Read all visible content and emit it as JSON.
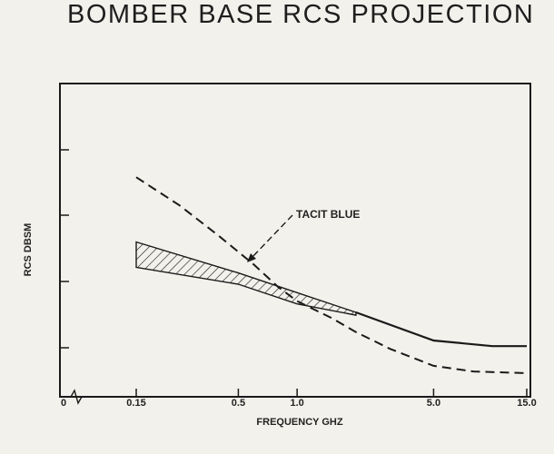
{
  "title": "BOMBER BASE RCS PROJECTION",
  "chart_data": {
    "type": "line",
    "xlabel": "FREQUENCY GHZ",
    "ylabel": "RCS DBSM",
    "x_scale": "log",
    "xlim": [
      0.15,
      15.0
    ],
    "x_ticks": [
      {
        "value": 0.15,
        "label": "0.15"
      },
      {
        "value": 0.5,
        "label": "0.5"
      },
      {
        "value": 1.0,
        "label": "1.0"
      },
      {
        "value": 5.0,
        "label": "5.0"
      },
      {
        "value": 15.0,
        "label": "15.0"
      }
    ],
    "x_origin_label": "0",
    "y_tick_labels_shown": false,
    "grid": false,
    "annotations": [
      {
        "text": "TACIT BLUE",
        "points_to_series": "tacit_blue"
      }
    ],
    "series": [
      {
        "id": "tacit_blue",
        "style": "dashed",
        "x": [
          0.15,
          0.25,
          0.4,
          0.6,
          0.8,
          1.0,
          1.5,
          2.0,
          3.0,
          5.0,
          8.0,
          15.0
        ],
        "y": [
          3.9,
          3.4,
          2.85,
          2.35,
          1.95,
          1.7,
          1.4,
          1.15,
          0.85,
          0.55,
          0.45,
          0.42
        ]
      },
      {
        "id": "base_band_upper",
        "style": "solid",
        "x": [
          0.15,
          0.5,
          1.0,
          2.0,
          5.0,
          10.0,
          15.0
        ],
        "y": [
          2.75,
          2.2,
          1.85,
          1.5,
          1.0,
          0.9,
          0.9
        ]
      },
      {
        "id": "base_band_lower",
        "style": "solid",
        "x": [
          0.15,
          0.5,
          1.0,
          2.0
        ],
        "y": [
          2.3,
          2.0,
          1.65,
          1.45
        ]
      }
    ],
    "band": {
      "between": [
        "base_band_upper",
        "base_band_lower"
      ],
      "fill": "hatched",
      "x_range": [
        0.15,
        2.0
      ]
    }
  }
}
